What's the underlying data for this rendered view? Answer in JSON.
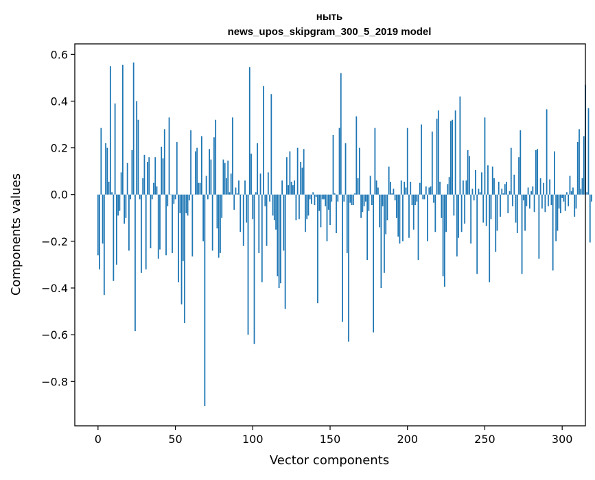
{
  "chart_data": {
    "type": "bar",
    "title_line1": "ныть",
    "title_line2": "news_upos_skipgram_300_5_2019 model",
    "xlabel": "Vector components",
    "ylabel": "Components values",
    "xlim": [
      -15,
      315
    ],
    "ylim": [
      -0.99,
      0.645
    ],
    "xticks": [
      0,
      50,
      100,
      150,
      200,
      250,
      300
    ],
    "xtick_labels": [
      "0",
      "50",
      "100",
      "150",
      "200",
      "250",
      "300"
    ],
    "yticks": [
      0.6,
      0.4,
      0.2,
      0.0,
      -0.2,
      -0.4,
      -0.6,
      -0.8
    ],
    "ytick_labels": [
      "0.6",
      "0.4",
      "0.2",
      "0.0",
      "−0.2",
      "−0.4",
      "−0.6",
      "−0.8"
    ],
    "bar_color": "#1f77b4",
    "values": [
      -0.26,
      -0.32,
      0.285,
      -0.21,
      -0.43,
      0.22,
      0.2,
      0.055,
      0.55,
      0.01,
      -0.37,
      0.39,
      -0.3,
      -0.09,
      -0.07,
      0.095,
      0.555,
      -0.125,
      -0.1,
      0.135,
      -0.24,
      -0.02,
      0.19,
      0.565,
      -0.585,
      0.4,
      0.32,
      -0.02,
      -0.335,
      0.07,
      0.17,
      -0.32,
      0.14,
      0.16,
      -0.23,
      -0.02,
      0.05,
      0.16,
      0.035,
      -0.275,
      -0.235,
      0.205,
      0.155,
      0.28,
      -0.26,
      -0.05,
      0.33,
      0.0,
      -0.25,
      -0.04,
      -0.02,
      0.225,
      -0.375,
      -0.08,
      -0.47,
      -0.285,
      -0.55,
      -0.08,
      -0.09,
      -0.025,
      0.275,
      -0.265,
      0.0,
      0.185,
      0.2,
      0.05,
      0.05,
      0.25,
      -0.2,
      -0.905,
      0.08,
      -0.02,
      0.195,
      0.15,
      -0.24,
      0.245,
      0.32,
      -0.145,
      -0.27,
      -0.25,
      -0.1,
      0.15,
      0.135,
      0.07,
      0.145,
      0.01,
      0.09,
      0.33,
      -0.065,
      0.03,
      0.005,
      0.06,
      -0.16,
      0.0,
      -0.22,
      0.06,
      -0.12,
      -0.6,
      0.545,
      0.175,
      -0.105,
      -0.64,
      0.01,
      0.22,
      -0.25,
      0.09,
      -0.375,
      0.465,
      -0.05,
      -0.22,
      0.095,
      -0.03,
      0.43,
      -0.09,
      -0.11,
      -0.15,
      -0.35,
      -0.4,
      -0.38,
      0.06,
      -0.24,
      -0.49,
      0.16,
      0.04,
      0.185,
      0.055,
      0.04,
      0.06,
      -0.11,
      0.2,
      -0.105,
      0.14,
      0.115,
      0.195,
      -0.16,
      -0.105,
      -0.09,
      -0.02,
      -0.04,
      0.01,
      -0.045,
      -0.01,
      -0.465,
      -0.07,
      -0.14,
      -0.02,
      -0.02,
      -0.05,
      -0.2,
      -0.065,
      -0.13,
      -0.03,
      0.255,
      0.005,
      -0.165,
      -0.03,
      0.285,
      0.52,
      -0.545,
      -0.03,
      0.22,
      -0.25,
      -0.63,
      -0.035,
      -0.045,
      -0.045,
      0.005,
      0.335,
      0.07,
      0.2,
      -0.1,
      -0.075,
      -0.05,
      -0.03,
      -0.28,
      -0.07,
      0.08,
      -0.045,
      -0.59,
      0.285,
      0.06,
      0.03,
      -0.14,
      -0.4,
      -0.05,
      -0.335,
      -0.17,
      -0.11,
      0.12,
      0.055,
      0.005,
      0.025,
      -0.025,
      -0.1,
      -0.18,
      -0.21,
      0.06,
      -0.2,
      0.055,
      0.03,
      0.285,
      -0.185,
      0.055,
      -0.045,
      -0.15,
      -0.045,
      -0.03,
      -0.28,
      0.05,
      0.3,
      -0.02,
      -0.02,
      0.035,
      -0.2,
      0.03,
      0.035,
      0.27,
      -0.035,
      -0.16,
      0.325,
      0.36,
      0.055,
      -0.1,
      -0.35,
      -0.395,
      -0.16,
      0.045,
      0.075,
      0.315,
      0.32,
      -0.09,
      0.36,
      -0.265,
      -0.185,
      0.42,
      -0.16,
      0.06,
      -0.125,
      0.06,
      0.19,
      0.165,
      -0.21,
      0.025,
      -0.025,
      0.105,
      -0.34,
      0.025,
      0.01,
      0.095,
      -0.12,
      0.33,
      -0.135,
      0.125,
      -0.375,
      -0.105,
      0.12,
      0.07,
      -0.245,
      -0.155,
      0.055,
      -0.095,
      0.025,
      0.005,
      0.045,
      0.055,
      -0.08,
      0.015,
      0.2,
      -0.05,
      0.085,
      -0.12,
      -0.165,
      0.16,
      0.275,
      -0.34,
      -0.025,
      -0.155,
      -0.05,
      0.03,
      -0.06,
      0.015,
      0.035,
      -0.075,
      0.19,
      0.195,
      -0.275,
      0.07,
      -0.06,
      0.05,
      -0.075,
      0.365,
      -0.05,
      0.065,
      -0.045,
      -0.325,
      0.185,
      -0.2,
      -0.155,
      -0.06,
      -0.08,
      -0.015,
      -0.03,
      -0.07,
      0.01,
      -0.05,
      0.08,
      0.015,
      0.03,
      -0.095,
      -0.06,
      0.225,
      0.28,
      0.025,
      0.07,
      0.25,
      0.47,
      0.01,
      0.37,
      -0.205,
      -0.03
    ]
  }
}
